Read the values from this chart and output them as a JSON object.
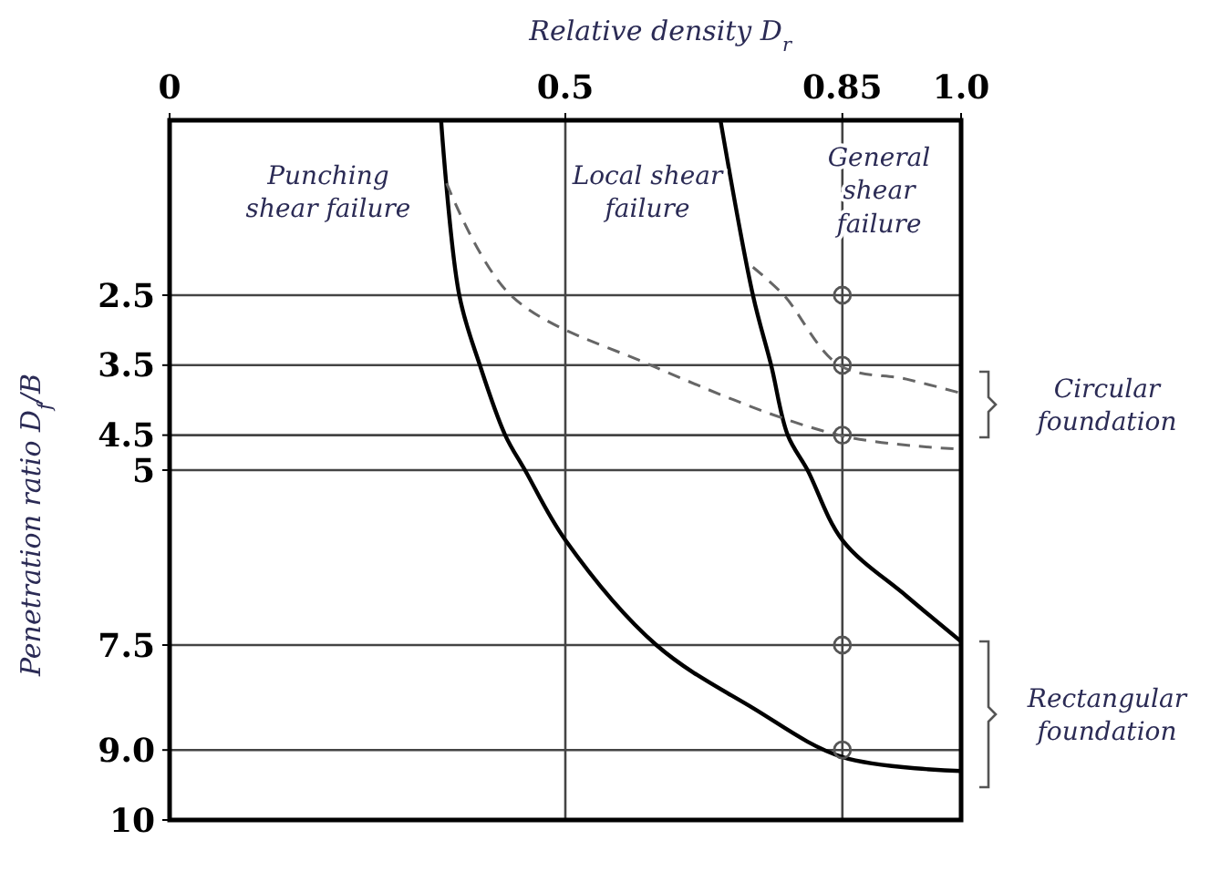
{
  "chart_data": {
    "type": "line",
    "xlabel": "Relative density D$_{r}$",
    "ylabel": "Penetration ratio D$_{f}$/B",
    "xlim": [
      0,
      1
    ],
    "xticks": [
      0,
      0.5,
      0.85,
      {
        "value": 1,
        "label": "1.0"
      }
    ],
    "ylim": [
      10,
      0
    ],
    "yticks": [
      2.5,
      3.5,
      4.5,
      5,
      7.5,
      {
        "value": 9,
        "label": "9.0"
      },
      10
    ],
    "grid": true,
    "series": [
      {
        "type": "line",
        "color": "#000000",
        "line_style": "solid",
        "x": [
          0.343,
          0.366,
          0.392,
          0.424,
          0.449,
          0.5,
          0.615,
          0.737,
          0.85,
          1.0
        ],
        "values": [
          0,
          2.5,
          3.5,
          4.5,
          5,
          6,
          7.5,
          8.4,
          9.1,
          9.3
        ]
      },
      {
        "type": "line",
        "color": "#000000",
        "line_style": "solid",
        "x": [
          0.696,
          0.737,
          0.76,
          0.781,
          0.806,
          0.85,
          0.931,
          1.0
        ],
        "values": [
          0,
          2.5,
          3.5,
          4.5,
          5,
          6,
          6.8,
          7.45
        ]
      },
      {
        "type": "line",
        "color": "#666666",
        "line_style": "dashed",
        "x": [
          0.35,
          0.431,
          0.608,
          0.846,
          1.0
        ],
        "values": [
          0.9,
          2.5,
          3.5,
          4.5,
          4.7
        ]
      },
      {
        "type": "line",
        "color": "#666666",
        "line_style": "dashed",
        "x": [
          0.737,
          0.776,
          0.846,
          0.931,
          1.0
        ],
        "values": [
          2.1,
          2.5,
          3.5,
          3.7,
          3.9
        ]
      },
      {
        "type": "scatter",
        "color": "#555555",
        "marker": "circle",
        "x": [
          0.85,
          0.85,
          0.85,
          0.85,
          0.85
        ],
        "values": [
          2.5,
          3.5,
          4.5,
          7.5,
          9
        ]
      }
    ],
    "annotations": [
      "Punching shear failure",
      "Local shear failure",
      "General shear failure",
      "Circular foundation",
      "Rectangular foundation"
    ]
  }
}
